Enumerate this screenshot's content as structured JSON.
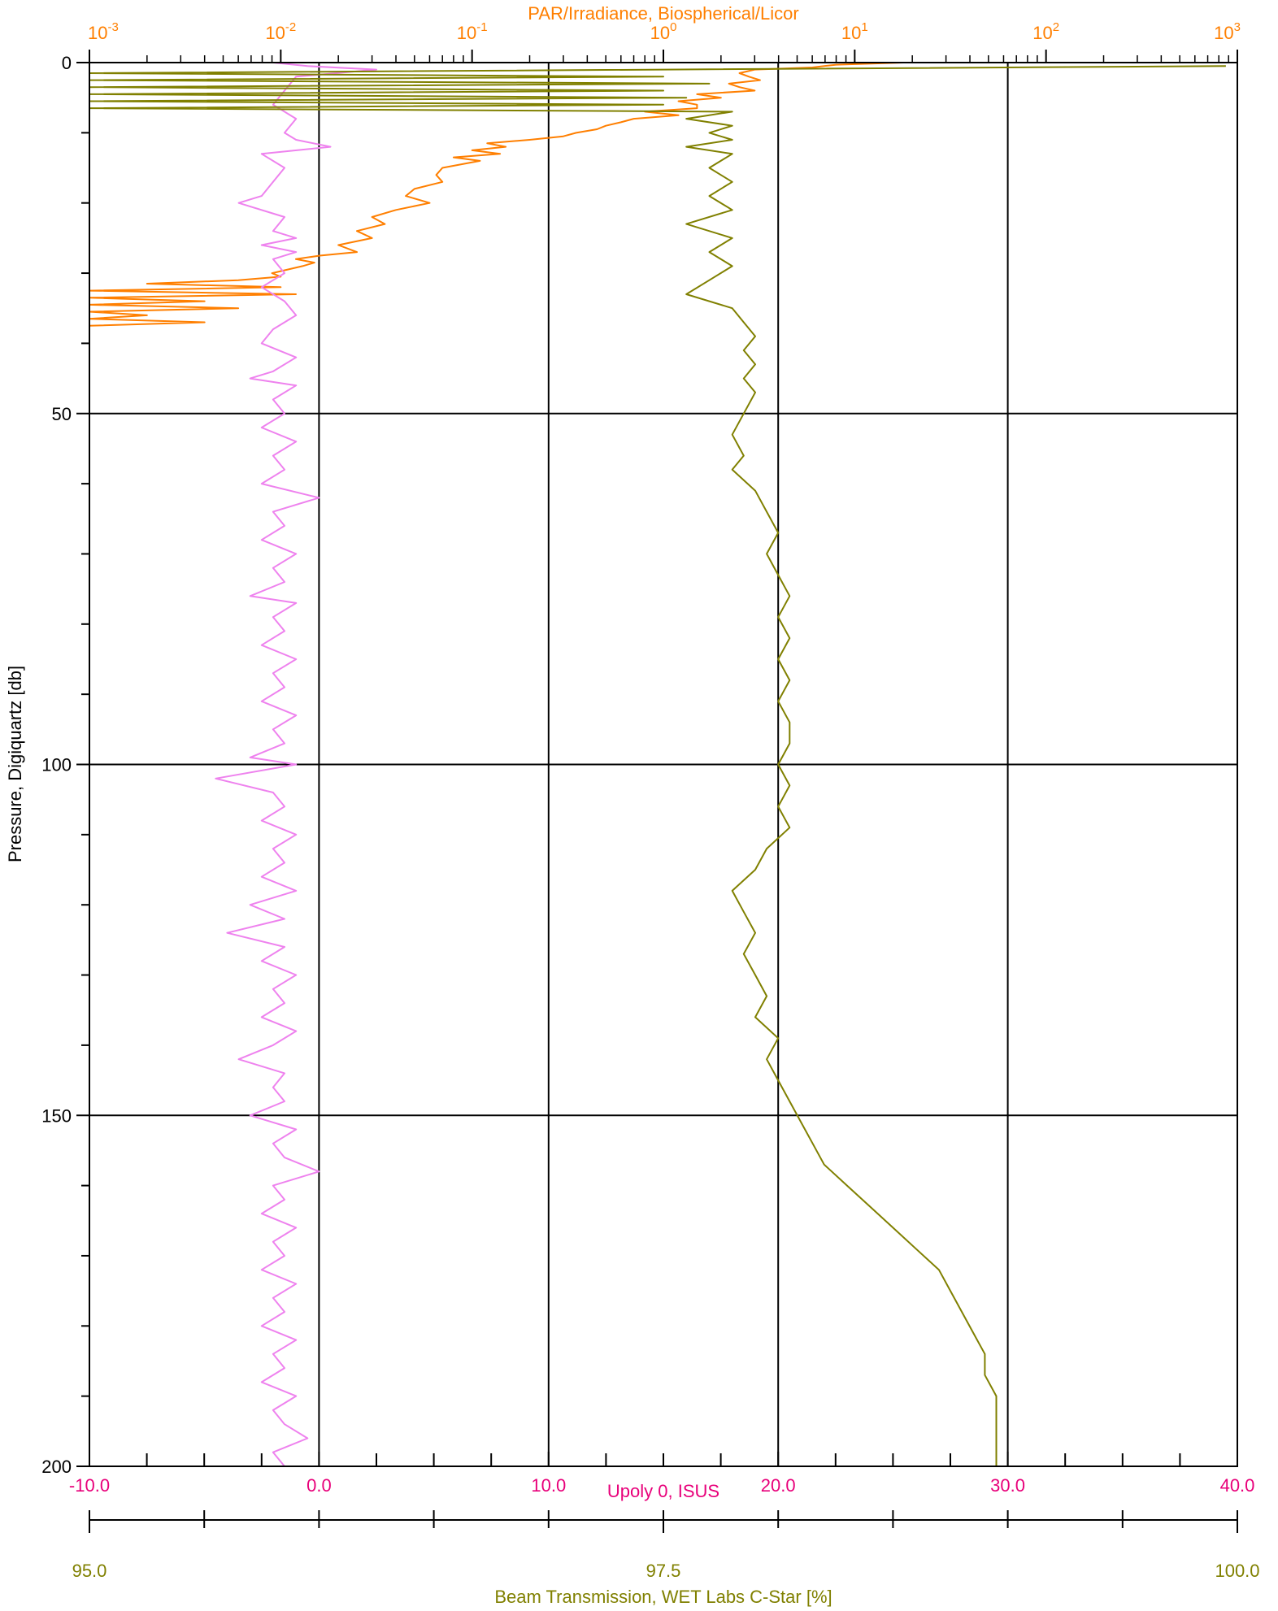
{
  "chart_data": {
    "type": "line",
    "left_axis": {
      "label": "Pressure, Digiquartz [db]",
      "range": [
        0,
        200
      ],
      "inverted": true,
      "ticks": [
        0,
        50,
        100,
        150,
        200
      ],
      "tick_labels": [
        "0",
        "50",
        "100",
        "150",
        "200"
      ],
      "minor_step": 10
    },
    "top_axis": {
      "label": "PAR/Irradiance, Biospherical/Licor",
      "scale": "log",
      "range": [
        0.001,
        1000
      ],
      "tick_labels": [
        "10-3",
        "10-2",
        "10-1",
        "100",
        "101",
        "102",
        "103"
      ],
      "color": "#ff7f00"
    },
    "bottom_axis": {
      "label": "Upoly 0, ISUS",
      "range": [
        -10,
        40
      ],
      "ticks": [
        -10,
        0,
        10,
        20,
        30,
        40
      ],
      "tick_labels": [
        "-10.0",
        "0.0",
        "10.0",
        "20.0",
        "30.0",
        "40.0"
      ],
      "color": "#e8007a"
    },
    "second_bottom_axis": {
      "label": "Beam Transmission, WET Labs C-Star [%]",
      "range": [
        95,
        100
      ],
      "ticks": [
        95,
        97.5,
        100
      ],
      "tick_labels": [
        "95.0",
        "97.5",
        "100.0"
      ],
      "color": "#808000"
    },
    "grid": true,
    "series": [
      {
        "color": "#ff7f00",
        "axis": "top",
        "points": [
          [
            18,
            0
          ],
          [
            8,
            0.3
          ],
          [
            6,
            0.7
          ],
          [
            3,
            1
          ],
          [
            2.5,
            1.5
          ],
          [
            2.8,
            2
          ],
          [
            3.2,
            2.5
          ],
          [
            2.2,
            3
          ],
          [
            2.5,
            3.5
          ],
          [
            3,
            4
          ],
          [
            1.5,
            4.5
          ],
          [
            2,
            5
          ],
          [
            1.2,
            5.5
          ],
          [
            1.5,
            6
          ],
          [
            1.5,
            6.5
          ],
          [
            0.8,
            7
          ],
          [
            1.2,
            7.5
          ],
          [
            0.7,
            8
          ],
          [
            0.6,
            8.5
          ],
          [
            0.5,
            9
          ],
          [
            0.45,
            9.5
          ],
          [
            0.35,
            10
          ],
          [
            0.3,
            10.5
          ],
          [
            0.2,
            11
          ],
          [
            0.12,
            11.5
          ],
          [
            0.15,
            12
          ],
          [
            0.1,
            12.5
          ],
          [
            0.14,
            13
          ],
          [
            0.08,
            13.5
          ],
          [
            0.11,
            14
          ],
          [
            0.07,
            15
          ],
          [
            0.065,
            16
          ],
          [
            0.07,
            17
          ],
          [
            0.05,
            18
          ],
          [
            0.045,
            19
          ],
          [
            0.06,
            20
          ],
          [
            0.04,
            21
          ],
          [
            0.03,
            22
          ],
          [
            0.035,
            23
          ],
          [
            0.025,
            24
          ],
          [
            0.03,
            25
          ],
          [
            0.02,
            26
          ],
          [
            0.025,
            27
          ],
          [
            0.016,
            27.5
          ],
          [
            0.012,
            28
          ],
          [
            0.015,
            28.5
          ],
          [
            0.013,
            29
          ],
          [
            0.009,
            30
          ],
          [
            0.01,
            30.5
          ],
          [
            0.006,
            31
          ],
          [
            0.002,
            31.5
          ],
          [
            0.01,
            32
          ],
          [
            0.001,
            32.5
          ],
          [
            0.012,
            33
          ],
          [
            0.001,
            33.5
          ],
          [
            0.004,
            34
          ],
          [
            0.001,
            34.5
          ],
          [
            0.006,
            35
          ],
          [
            0.001,
            35.5
          ],
          [
            0.002,
            36
          ],
          [
            0.001,
            36.5
          ],
          [
            0.004,
            37
          ],
          [
            0.001,
            37.5
          ]
        ]
      },
      {
        "color": "#ee82ee",
        "axis": "bottom",
        "points": [
          [
            -2,
            0
          ],
          [
            -0.5,
            0.5
          ],
          [
            2.5,
            1
          ],
          [
            -1,
            2
          ],
          [
            -1.5,
            4
          ],
          [
            -2,
            6
          ],
          [
            -1,
            8
          ],
          [
            -1.5,
            10
          ],
          [
            -1,
            11
          ],
          [
            0.5,
            12
          ],
          [
            -2.5,
            13
          ],
          [
            -1.5,
            15
          ],
          [
            -2,
            17
          ],
          [
            -2.5,
            19
          ],
          [
            -3.5,
            20
          ],
          [
            -1.5,
            22
          ],
          [
            -2,
            24
          ],
          [
            -1,
            25
          ],
          [
            -2.5,
            26
          ],
          [
            -1,
            27
          ],
          [
            -2,
            28
          ],
          [
            -1.5,
            30
          ],
          [
            -2.5,
            32
          ],
          [
            -1.5,
            34
          ],
          [
            -1,
            36
          ],
          [
            -2,
            38
          ],
          [
            -2.5,
            40
          ],
          [
            -1,
            42
          ],
          [
            -2,
            44
          ],
          [
            -3,
            45
          ],
          [
            -1,
            46
          ],
          [
            -2,
            48
          ],
          [
            -1.5,
            50
          ],
          [
            -2.5,
            52
          ],
          [
            -1,
            54
          ],
          [
            -2,
            56
          ],
          [
            -1.5,
            58
          ],
          [
            -2.5,
            60
          ],
          [
            0,
            62
          ],
          [
            -2,
            64
          ],
          [
            -1.5,
            66
          ],
          [
            -2.5,
            68
          ],
          [
            -1,
            70
          ],
          [
            -2,
            72
          ],
          [
            -1.5,
            74
          ],
          [
            -3,
            76
          ],
          [
            -1,
            77
          ],
          [
            -2,
            79
          ],
          [
            -1.5,
            81
          ],
          [
            -2.5,
            83
          ],
          [
            -1,
            85
          ],
          [
            -2,
            87
          ],
          [
            -1.5,
            89
          ],
          [
            -2.5,
            91
          ],
          [
            -1,
            93
          ],
          [
            -2,
            95
          ],
          [
            -1.5,
            97
          ],
          [
            -3,
            99
          ],
          [
            -1,
            100
          ],
          [
            -4.5,
            102
          ],
          [
            -2,
            104
          ],
          [
            -1.5,
            106
          ],
          [
            -2.5,
            108
          ],
          [
            -1,
            110
          ],
          [
            -2,
            112
          ],
          [
            -1.5,
            114
          ],
          [
            -2.5,
            116
          ],
          [
            -1,
            118
          ],
          [
            -3,
            120
          ],
          [
            -1.5,
            122
          ],
          [
            -4,
            124
          ],
          [
            -1.5,
            126
          ],
          [
            -2.5,
            128
          ],
          [
            -1,
            130
          ],
          [
            -2,
            132
          ],
          [
            -1.5,
            134
          ],
          [
            -2.5,
            136
          ],
          [
            -1,
            138
          ],
          [
            -2,
            140
          ],
          [
            -3.5,
            142
          ],
          [
            -1.5,
            144
          ],
          [
            -2,
            146
          ],
          [
            -1.5,
            148
          ],
          [
            -3,
            150
          ],
          [
            -1,
            152
          ],
          [
            -2,
            154
          ],
          [
            -1.5,
            156
          ],
          [
            0,
            158
          ],
          [
            -2,
            160
          ],
          [
            -1.5,
            162
          ],
          [
            -2.5,
            164
          ],
          [
            -1,
            166
          ],
          [
            -2,
            168
          ],
          [
            -1.5,
            170
          ],
          [
            -2.5,
            172
          ],
          [
            -1,
            174
          ],
          [
            -2,
            176
          ],
          [
            -1.5,
            178
          ],
          [
            -2.5,
            180
          ],
          [
            -1,
            182
          ],
          [
            -2,
            184
          ],
          [
            -1.5,
            186
          ],
          [
            -2.5,
            188
          ],
          [
            -1,
            190
          ],
          [
            -2,
            192
          ],
          [
            -1.5,
            194
          ],
          [
            -0.5,
            196
          ],
          [
            -2,
            198
          ],
          [
            -1.5,
            200
          ]
        ]
      },
      {
        "color": "#808000",
        "axis": "second_bottom",
        "points": [
          [
            99.95,
            0.5
          ],
          [
            95,
            1.5
          ],
          [
            97.5,
            2
          ],
          [
            95,
            2.5
          ],
          [
            97.7,
            3
          ],
          [
            95,
            3.5
          ],
          [
            97.5,
            4
          ],
          [
            95,
            4.5
          ],
          [
            97.6,
            5
          ],
          [
            95,
            5.5
          ],
          [
            97.5,
            6
          ],
          [
            95,
            6.5
          ],
          [
            97.8,
            7
          ],
          [
            97.6,
            8
          ],
          [
            97.8,
            9
          ],
          [
            97.7,
            10
          ],
          [
            97.8,
            11
          ],
          [
            97.6,
            12
          ],
          [
            97.8,
            13
          ],
          [
            97.7,
            15
          ],
          [
            97.8,
            17
          ],
          [
            97.7,
            19
          ],
          [
            97.8,
            21
          ],
          [
            97.6,
            23
          ],
          [
            97.8,
            25
          ],
          [
            97.7,
            27
          ],
          [
            97.8,
            29
          ],
          [
            97.7,
            31
          ],
          [
            97.6,
            33
          ],
          [
            97.8,
            35
          ],
          [
            97.85,
            37
          ],
          [
            97.9,
            39
          ],
          [
            97.85,
            41
          ],
          [
            97.9,
            43
          ],
          [
            97.85,
            45
          ],
          [
            97.9,
            47
          ],
          [
            97.85,
            50
          ],
          [
            97.8,
            53
          ],
          [
            97.85,
            56
          ],
          [
            97.8,
            58
          ],
          [
            97.9,
            61
          ],
          [
            97.95,
            64
          ],
          [
            98,
            67
          ],
          [
            97.95,
            70
          ],
          [
            98,
            73
          ],
          [
            98.05,
            76
          ],
          [
            98,
            79
          ],
          [
            98.05,
            82
          ],
          [
            98,
            85
          ],
          [
            98.05,
            88
          ],
          [
            98,
            91
          ],
          [
            98.05,
            94
          ],
          [
            98.05,
            97
          ],
          [
            98,
            100
          ],
          [
            98.05,
            103
          ],
          [
            98,
            106
          ],
          [
            98.05,
            109
          ],
          [
            97.95,
            112
          ],
          [
            97.9,
            115
          ],
          [
            97.8,
            118
          ],
          [
            97.85,
            121
          ],
          [
            97.9,
            124
          ],
          [
            97.85,
            127
          ],
          [
            97.9,
            130
          ],
          [
            97.95,
            133
          ],
          [
            97.9,
            136
          ],
          [
            98,
            139
          ],
          [
            97.95,
            142
          ],
          [
            98,
            145
          ],
          [
            98.05,
            148
          ],
          [
            98.1,
            151
          ],
          [
            98.15,
            154
          ],
          [
            98.2,
            157
          ],
          [
            98.3,
            160
          ],
          [
            98.4,
            163
          ],
          [
            98.5,
            166
          ],
          [
            98.6,
            169
          ],
          [
            98.7,
            172
          ],
          [
            98.75,
            175
          ],
          [
            98.8,
            178
          ],
          [
            98.85,
            181
          ],
          [
            98.9,
            184
          ],
          [
            98.9,
            187
          ],
          [
            98.95,
            190
          ],
          [
            98.95,
            193
          ],
          [
            98.95,
            196
          ],
          [
            98.95,
            199
          ],
          [
            98.95,
            200
          ]
        ]
      }
    ]
  }
}
